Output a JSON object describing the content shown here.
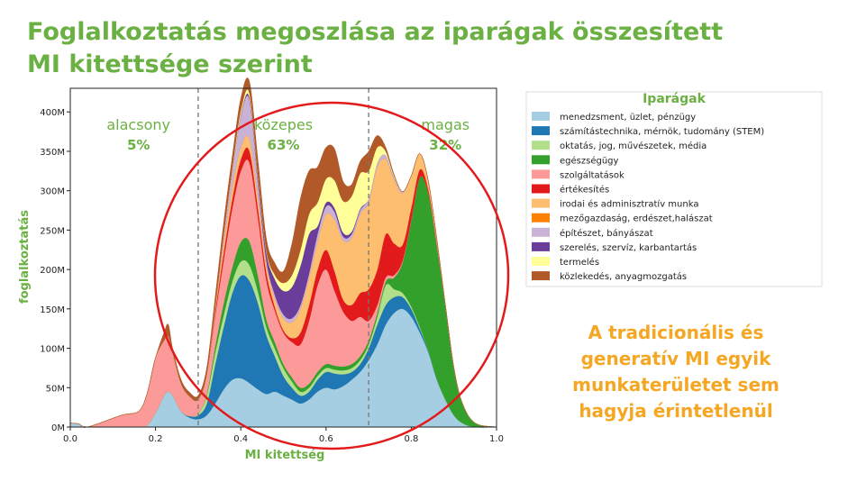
{
  "title_line1": "Foglalkoztatás megoszlása az iparágak összesített",
  "title_line2": "MI kitettsége szerint",
  "side_note": [
    "A tradicionális és",
    "generatív MI egyik",
    "munkaterületet sem",
    "hagyja érintetlenül"
  ],
  "chart_data": {
    "type": "area",
    "stacked": true,
    "xlabel": "MI kitettség",
    "ylabel": "foglalkoztatás",
    "xlim": [
      0,
      1
    ],
    "ylim": [
      0,
      430
    ],
    "x_ticks": [
      "0.0",
      "0.2",
      "0.4",
      "0.6",
      "0.8",
      "1.0"
    ],
    "x_tick_values": [
      0,
      0.2,
      0.4,
      0.6,
      0.8,
      1.0
    ],
    "y_ticks": [
      "0M",
      "50M",
      "100M",
      "150M",
      "200M",
      "250M",
      "300M",
      "350M",
      "400M"
    ],
    "y_tick_values": [
      0,
      50,
      100,
      150,
      200,
      250,
      300,
      350,
      400
    ],
    "grid": false,
    "dividers": [
      0.3,
      0.7
    ],
    "zones": [
      {
        "label": "alacsony",
        "pct": "5%",
        "x": 0.16
      },
      {
        "label": "közepes",
        "pct": "63%",
        "x": 0.5
      },
      {
        "label": "magas",
        "pct": "32%",
        "x": 0.88
      }
    ],
    "legend_title": "Iparágak",
    "legend_position": "right",
    "x": [
      0,
      0.02,
      0.04,
      0.12,
      0.16,
      0.18,
      0.2,
      0.22,
      0.23,
      0.24,
      0.26,
      0.28,
      0.3,
      0.32,
      0.34,
      0.36,
      0.38,
      0.4,
      0.42,
      0.44,
      0.46,
      0.48,
      0.5,
      0.52,
      0.54,
      0.56,
      0.58,
      0.6,
      0.62,
      0.64,
      0.66,
      0.68,
      0.7,
      0.72,
      0.74,
      0.76,
      0.78,
      0.8,
      0.82,
      0.84,
      0.86,
      0.88,
      0.9,
      0.92,
      0.95,
      1.0
    ],
    "series": [
      {
        "name": "menedzsment, üzlet, pénzügy",
        "color": "#a6cee3",
        "values": [
          5,
          4,
          0,
          0,
          0,
          2,
          18,
          40,
          45,
          40,
          20,
          12,
          10,
          15,
          30,
          48,
          60,
          62,
          56,
          48,
          42,
          45,
          40,
          35,
          30,
          35,
          45,
          50,
          48,
          52,
          60,
          70,
          85,
          105,
          130,
          145,
          150,
          140,
          120,
          95,
          60,
          35,
          15,
          5,
          0,
          0
        ]
      },
      {
        "name": "számítástechnika, mérnök, tudomány (STEM)",
        "color": "#1f78b4",
        "values": [
          0,
          0,
          0,
          0,
          0,
          0,
          0,
          0,
          0,
          0,
          0,
          2,
          5,
          15,
          50,
          80,
          110,
          130,
          130,
          110,
          75,
          45,
          25,
          15,
          10,
          10,
          15,
          20,
          20,
          15,
          10,
          10,
          15,
          25,
          25,
          20,
          15,
          10,
          5,
          2,
          1,
          0,
          0,
          0,
          0,
          0
        ]
      },
      {
        "name": "oktatás, jog, művészetek, média",
        "color": "#b2df8a",
        "values": [
          0,
          0,
          0,
          0,
          0,
          0,
          0,
          0,
          0,
          0,
          0,
          0,
          2,
          10,
          15,
          15,
          15,
          18,
          20,
          15,
          10,
          10,
          10,
          8,
          5,
          5,
          5,
          5,
          5,
          5,
          5,
          5,
          5,
          10,
          25,
          10,
          5,
          3,
          2,
          0,
          0,
          0,
          0,
          0,
          0,
          0
        ]
      },
      {
        "name": "egészségügy",
        "color": "#33a02c",
        "values": [
          0,
          0,
          0,
          0,
          0,
          0,
          0,
          0,
          0,
          0,
          0,
          0,
          0,
          2,
          8,
          15,
          18,
          25,
          30,
          20,
          10,
          8,
          5,
          5,
          5,
          5,
          5,
          5,
          5,
          5,
          5,
          5,
          5,
          5,
          5,
          15,
          40,
          110,
          190,
          200,
          170,
          120,
          60,
          25,
          5,
          0
        ]
      },
      {
        "name": "szolgáltatások",
        "color": "#fb9a99",
        "values": [
          0,
          0,
          0,
          15,
          20,
          40,
          70,
          70,
          70,
          55,
          35,
          25,
          18,
          25,
          40,
          55,
          75,
          90,
          100,
          75,
          50,
          40,
          40,
          45,
          55,
          80,
          110,
          120,
          95,
          70,
          55,
          50,
          25,
          10,
          5,
          3,
          2,
          1,
          0,
          0,
          0,
          0,
          0,
          0,
          0,
          0
        ]
      },
      {
        "name": "értékesítés",
        "color": "#e31a1c",
        "values": [
          0,
          0,
          0,
          0,
          0,
          0,
          0,
          0,
          0,
          0,
          0,
          0,
          0,
          0,
          5,
          10,
          12,
          15,
          15,
          12,
          10,
          5,
          3,
          5,
          15,
          20,
          20,
          25,
          25,
          15,
          20,
          30,
          40,
          45,
          55,
          40,
          20,
          15,
          10,
          5,
          2,
          0,
          0,
          0,
          0,
          0
        ]
      },
      {
        "name": "irodai és adminisztratív munka",
        "color": "#fdbf6f",
        "values": [
          0,
          0,
          0,
          0,
          0,
          0,
          0,
          0,
          0,
          0,
          0,
          0,
          0,
          0,
          5,
          10,
          15,
          15,
          15,
          12,
          10,
          10,
          15,
          20,
          30,
          35,
          35,
          45,
          65,
          75,
          85,
          100,
          110,
          130,
          95,
          80,
          65,
          40,
          20,
          10,
          5,
          0,
          0,
          0,
          0,
          0
        ]
      },
      {
        "name": "mezőgazdaság, erdészet,halászat",
        "color": "#ff7f00",
        "values": [
          0,
          0,
          0,
          0,
          0,
          0,
          0,
          0,
          0,
          0,
          0,
          0,
          0,
          0,
          0,
          0,
          0,
          0,
          0,
          0,
          0,
          0,
          0,
          0,
          0,
          0,
          0,
          0,
          0,
          0,
          0,
          0,
          0,
          0,
          0,
          0,
          0,
          0,
          0,
          0,
          0,
          0,
          0,
          0,
          0,
          0
        ]
      },
      {
        "name": "építészet, bányászat",
        "color": "#cab2d6",
        "values": [
          0,
          0,
          0,
          0,
          0,
          0,
          0,
          0,
          0,
          0,
          0,
          0,
          0,
          0,
          0,
          10,
          20,
          40,
          50,
          20,
          5,
          5,
          5,
          5,
          5,
          5,
          10,
          10,
          10,
          5,
          5,
          5,
          5,
          5,
          5,
          3,
          2,
          0,
          0,
          0,
          0,
          0,
          0,
          0,
          0,
          0
        ]
      },
      {
        "name": "szerelés, szervíz, karbantartás",
        "color": "#6a3d9a",
        "values": [
          0,
          0,
          0,
          0,
          0,
          0,
          0,
          0,
          0,
          0,
          0,
          0,
          0,
          0,
          0,
          0,
          0,
          2,
          3,
          5,
          10,
          20,
          30,
          40,
          50,
          50,
          10,
          5,
          5,
          5,
          3,
          2,
          0,
          0,
          0,
          0,
          0,
          0,
          0,
          0,
          0,
          0,
          0,
          0,
          0,
          0
        ]
      },
      {
        "name": "termelés",
        "color": "#ffff99",
        "values": [
          0,
          0,
          0,
          0,
          0,
          0,
          0,
          0,
          0,
          0,
          0,
          0,
          0,
          0,
          0,
          2,
          3,
          5,
          5,
          3,
          2,
          5,
          10,
          15,
          20,
          25,
          30,
          30,
          35,
          40,
          45,
          45,
          35,
          20,
          5,
          2,
          0,
          0,
          0,
          0,
          0,
          0,
          0,
          0,
          0,
          0
        ]
      },
      {
        "name": "közlekedés, anyagmozgatás",
        "color": "#b15928",
        "values": [
          0,
          0,
          0,
          0,
          0,
          0,
          0,
          10,
          15,
          5,
          5,
          5,
          5,
          8,
          12,
          15,
          15,
          15,
          15,
          20,
          15,
          15,
          15,
          40,
          65,
          55,
          45,
          40,
          40,
          25,
          15,
          15,
          25,
          15,
          5,
          2,
          0,
          0,
          0,
          0,
          0,
          0,
          0,
          0,
          0,
          0
        ]
      }
    ]
  }
}
